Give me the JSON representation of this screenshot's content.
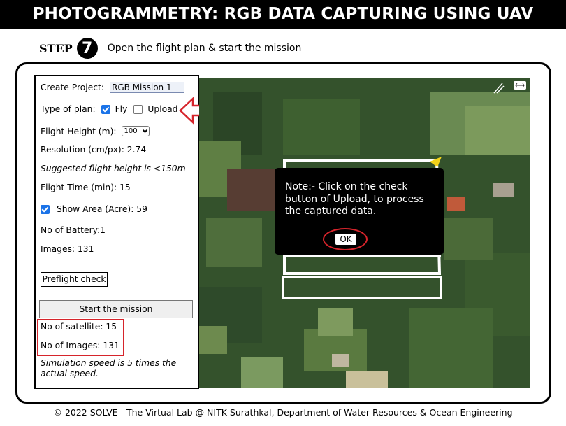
{
  "header": {
    "title": "PHOTOGRAMMETRY: RGB DATA CAPTURING USING UAV"
  },
  "step": {
    "label": "STEP",
    "number": "7",
    "instruction": "Open the flight plan & start the mission"
  },
  "panel": {
    "create_project_label": "Create Project:",
    "project_name": "RGB Mission 1",
    "type_of_plan_label": "Type of plan:",
    "fly_label": "Fly",
    "upload_label": "Upload",
    "fly_checked": true,
    "upload_checked": false,
    "flight_height_label": "Flight Height (m):",
    "flight_height_value": "100",
    "resolution_text": "Resolution (cm/px): 2.74",
    "suggested_text": "Suggested flight height is <150m",
    "flight_time_text": "Flight Time (min): 15",
    "show_area_text": "Show Area (Acre): 59",
    "show_area_checked": true,
    "battery_text": "No of Battery:1",
    "images_text": "Images: 131",
    "preflight_button": "Preflight check",
    "start_button": "Start the mission",
    "satellite_text": "No of satellite: 15",
    "no_images_text": "No of Images: 131",
    "speed_note": "Simulation speed is 5 times the actual speed."
  },
  "modal": {
    "message": "Note:- Click on the check button of Upload, to process the captured data.",
    "ok_label": "OK"
  },
  "colors": {
    "highlight": "#d6242b",
    "checkbox": "#1a73e8",
    "header_bg": "#000000",
    "drone_marker": "#f2d21a"
  },
  "footer": {
    "text": "© 2022 SOLVE - The Virtual Lab @ NITK Surathkal, Department of Water Resources & Ocean Engineering"
  }
}
